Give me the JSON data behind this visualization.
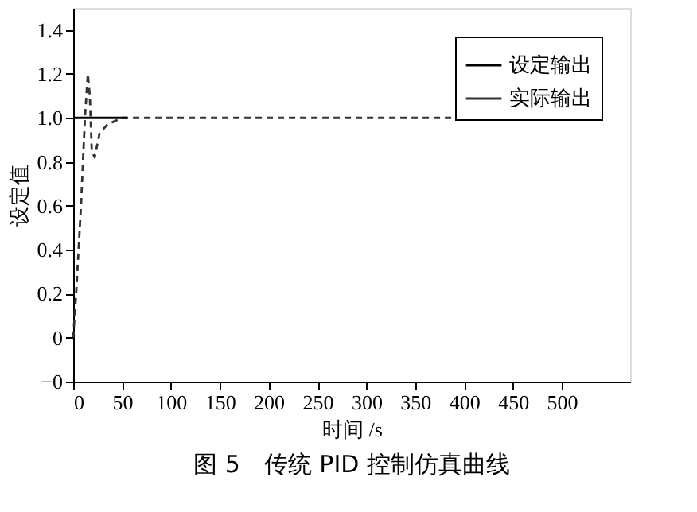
{
  "chart_data": {
    "type": "line",
    "title": "图 5　传统 PID 控制仿真曲线",
    "xlabel": "时间 /s",
    "ylabel": "设定值",
    "xlim": [
      0,
      570
    ],
    "xticks": [
      0,
      50,
      100,
      150,
      200,
      250,
      300,
      350,
      400,
      450,
      500
    ],
    "ylim": [
      -0.2,
      1.5
    ],
    "yticks": [
      {
        "value": -0.2,
        "label": "−0"
      },
      0,
      0.2,
      0.4,
      0.6,
      0.8,
      {
        "value": 1,
        "label": "1.0"
      },
      1.2,
      1.4
    ],
    "grid": false,
    "legend": "top right",
    "marker": "none",
    "series": [
      {
        "name": "设定输出",
        "color": "#000000",
        "line_style": "solid",
        "x": [
          0,
          55
        ],
        "values": [
          1.0,
          1.0
        ]
      },
      {
        "name": "实际输出",
        "color": "#333333",
        "line_style": "dashed",
        "x": [
          0,
          3,
          8,
          12,
          15,
          17,
          19,
          22,
          27,
          35,
          50,
          500
        ],
        "values": [
          0,
          0.2,
          0.6,
          1.0,
          1.2,
          1.1,
          0.85,
          0.82,
          0.93,
          0.97,
          1.0,
          1.0
        ]
      }
    ]
  }
}
